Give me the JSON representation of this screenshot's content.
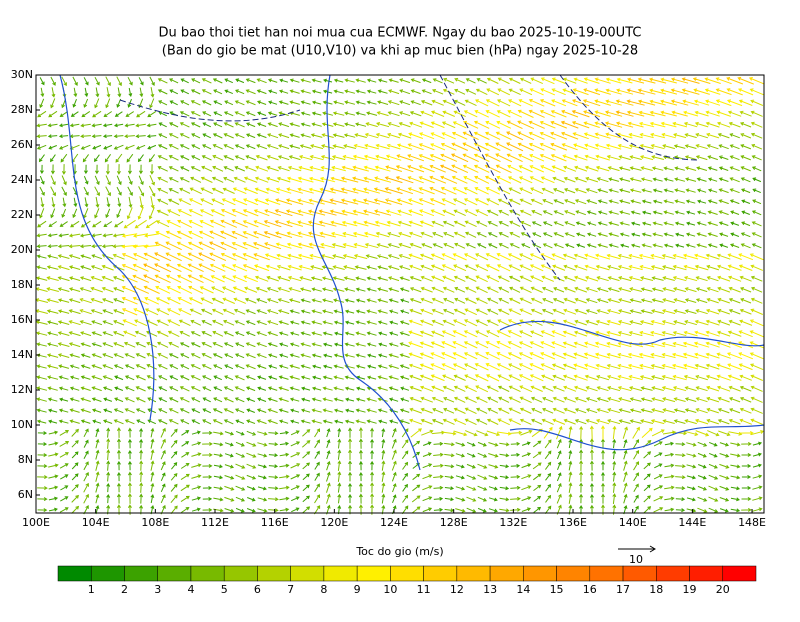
{
  "header": {
    "title": "Du bao thoi tiet han noi mua cua ECMWF. Ngay du bao 2025-10-19-00UTC",
    "subtitle": "(Ban do gio be mat (U10,V10) va khi ap muc bien (hPa) ngay 2025-10-28"
  },
  "map": {
    "lat_labels": [
      "30N",
      "28N",
      "26N",
      "24N",
      "22N",
      "20N",
      "18N",
      "16N",
      "14N",
      "12N",
      "10N",
      "8N",
      "6N"
    ],
    "lon_labels": [
      "100E",
      "104E",
      "108E",
      "112E",
      "116E",
      "120E",
      "124E",
      "128E",
      "132E",
      "136E",
      "140E",
      "144E",
      "148E"
    ]
  },
  "colorbar": {
    "title": "Toc do gio (m/s)",
    "colors": [
      "#008a00",
      "#1e9600",
      "#3ca200",
      "#5aae00",
      "#78ba00",
      "#96c600",
      "#b4d200",
      "#d2de00",
      "#f0ea00",
      "#fff000",
      "#ffde00",
      "#ffcc00",
      "#ffba00",
      "#ffa800",
      "#ff9600",
      "#ff8400",
      "#ff7200",
      "#ff5a00",
      "#ff3c00",
      "#ff1e00",
      "#ff0000"
    ],
    "ticks": [
      1,
      2,
      3,
      4,
      5,
      6,
      7,
      8,
      9,
      10,
      11,
      12,
      13,
      14,
      15,
      16,
      17,
      18,
      19,
      20
    ]
  },
  "reference_vector": {
    "label": 10
  }
}
